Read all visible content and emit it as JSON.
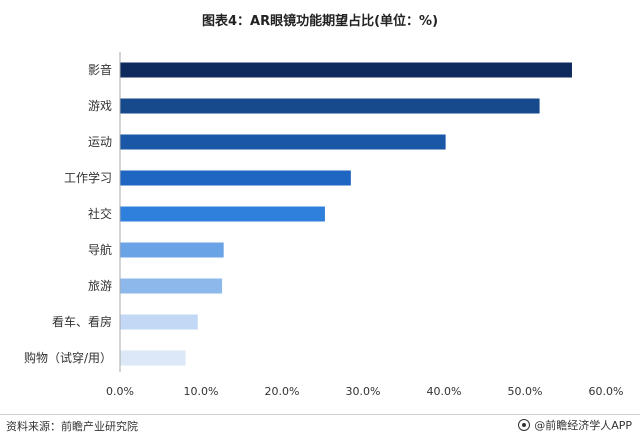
{
  "title": "图表4：AR眼镜功能期望占比(单位：%)",
  "footer": {
    "source": "资料来源：前瞻产业研究院",
    "brand": "@前瞻经济学人APP",
    "brand_icon": "brand-logo-icon"
  },
  "chart_data": {
    "type": "bar",
    "orientation": "horizontal",
    "title": "图表4：AR眼镜功能期望占比(单位：%)",
    "xlabel": "",
    "ylabel": "",
    "categories": [
      "影音",
      "游戏",
      "运动",
      "工作学习",
      "社交",
      "导航",
      "旅游",
      "看车、看房",
      "购物（试穿/用）"
    ],
    "values": [
      55.8,
      51.8,
      40.2,
      28.5,
      25.3,
      12.8,
      12.6,
      9.6,
      8.1
    ],
    "xlim": [
      0,
      60
    ],
    "xticks": [
      "0.0%",
      "10.0%",
      "20.0%",
      "30.0%",
      "40.0%",
      "50.0%",
      "60.0%"
    ],
    "grid": false,
    "colors": [
      "#0f2a5c",
      "#164a8c",
      "#1a57a6",
      "#1f66c2",
      "#2f80dc",
      "#6aa3e6",
      "#8cb8ec",
      "#c2d8f4",
      "#dce8f8"
    ]
  }
}
